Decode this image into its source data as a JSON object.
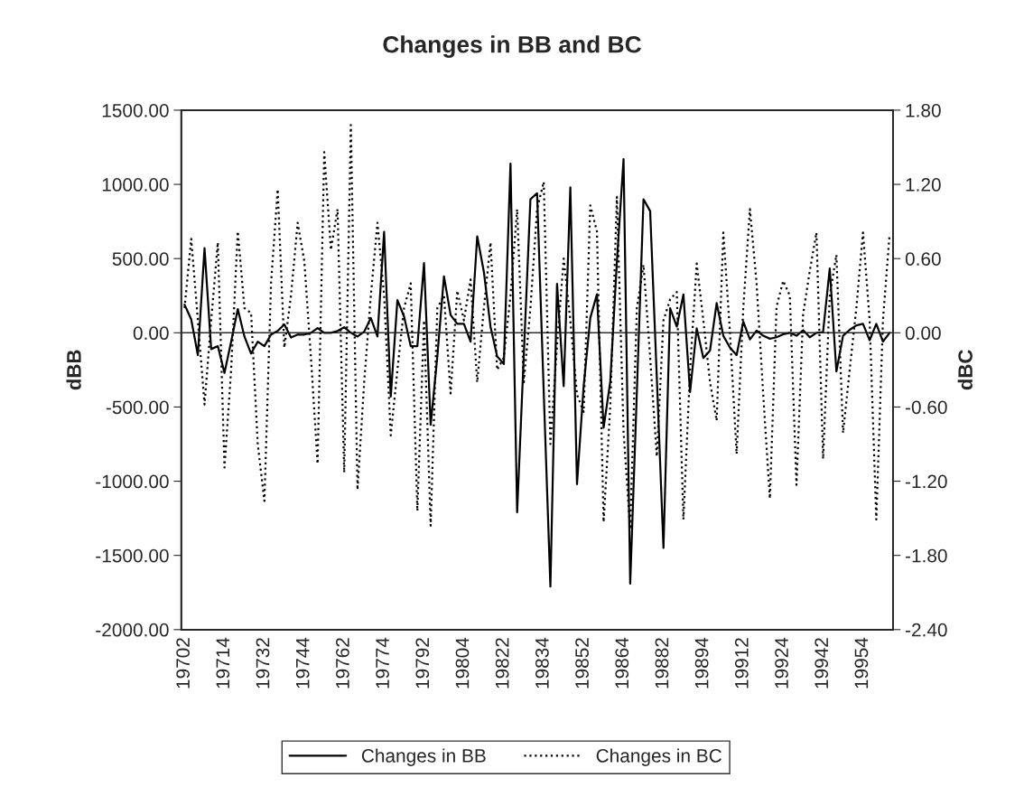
{
  "chart_data": {
    "type": "line",
    "title": "Changes in BB and BC",
    "ylabel": "dBB",
    "y2label": "dBC",
    "categories": [
      "19702",
      null,
      null,
      null,
      null,
      null,
      "19714",
      null,
      null,
      null,
      null,
      null,
      "19732",
      null,
      null,
      null,
      null,
      null,
      "19744",
      null,
      null,
      null,
      null,
      null,
      "19762",
      null,
      null,
      null,
      null,
      null,
      "19774",
      null,
      null,
      null,
      null,
      null,
      "19792",
      null,
      null,
      null,
      null,
      null,
      "19804",
      null,
      null,
      null,
      null,
      null,
      "19822",
      null,
      null,
      null,
      null,
      null,
      "19834",
      null,
      null,
      null,
      null,
      null,
      "19852",
      null,
      null,
      null,
      null,
      null,
      "19864",
      null,
      null,
      null,
      null,
      null,
      "19882",
      null,
      null,
      null,
      null,
      null,
      "19894",
      null,
      null,
      null,
      null,
      null,
      "19912",
      null,
      null,
      null,
      null,
      null,
      "19924",
      null,
      null,
      null,
      null,
      null,
      "19942",
      null,
      null,
      null,
      null,
      null,
      "19954",
      null,
      null,
      null,
      null
    ],
    "series": [
      {
        "name": "Changes in BB",
        "color": "#000000",
        "line_style": "solid",
        "values": [
          190,
          90,
          -150,
          570,
          -110,
          -90,
          -270,
          -60,
          160,
          -25,
          -140,
          -60,
          -90,
          -12,
          12,
          57,
          -32,
          -12,
          -12,
          0,
          32,
          0,
          0,
          12,
          37,
          0,
          -25,
          7,
          100,
          -25,
          680,
          -430,
          220,
          110,
          -90,
          -90,
          470,
          -620,
          -160,
          380,
          120,
          60,
          60,
          -60,
          650,
          410,
          40,
          -160,
          -210,
          1140,
          -1210,
          -150,
          900,
          940,
          -400,
          -1710,
          330,
          -360,
          980,
          -1020,
          -360,
          100,
          260,
          -640,
          -330,
          480,
          1170,
          -1690,
          -400,
          900,
          820,
          -300,
          -1450,
          166,
          42,
          258,
          -400,
          30,
          -170,
          -120,
          200,
          -20,
          -100,
          -150,
          75,
          -45,
          15,
          -20,
          -40,
          -30,
          -10,
          0,
          -20,
          17,
          -30,
          0,
          5,
          434,
          -260,
          -20,
          20,
          50,
          60,
          -50,
          60,
          -60,
          0
        ]
      },
      {
        "name": "Changes in BC",
        "color": "#000000",
        "line_style": "dotted",
        "axis": "y2",
        "values": [
          0.2,
          0.76,
          0.1,
          -0.58,
          0.1,
          0.73,
          -1.09,
          -0.3,
          0.82,
          0.2,
          0.16,
          -0.9,
          -1.36,
          0.4,
          1.16,
          -0.12,
          0.3,
          0.89,
          0.58,
          -0.2,
          -1.06,
          1.46,
          0.67,
          1.0,
          -1.13,
          1.68,
          -1.27,
          -0.4,
          0.3,
          0.89,
          0.3,
          -0.83,
          -0.3,
          0.2,
          0.4,
          -1.44,
          0.1,
          -1.56,
          0.2,
          0.3,
          -0.49,
          0.34,
          0.1,
          0.43,
          -0.4,
          0.2,
          0.73,
          -0.3,
          -0.2,
          0.3,
          1.0,
          -0.4,
          0.2,
          1.0,
          1.22,
          -0.9,
          -0.1,
          0.6,
          0.1,
          -0.5,
          -0.64,
          1.03,
          0.82,
          -1.53,
          -0.6,
          1.1,
          -0.8,
          -1.59,
          0.2,
          0.55,
          -0.2,
          -1.0,
          0.1,
          0.27,
          0.33,
          -1.51,
          -0.3,
          0.56,
          0.1,
          -0.4,
          -0.71,
          0.81,
          0.0,
          -0.98,
          0.2,
          1.0,
          0.4,
          -0.5,
          -1.34,
          0.21,
          0.42,
          0.3,
          -1.23,
          0.15,
          0.5,
          0.81,
          -1.02,
          0.3,
          0.63,
          -0.81,
          -0.3,
          0.2,
          0.81,
          0.1,
          -1.51,
          0.1,
          0.8
        ]
      }
    ],
    "ylim": [
      -2000,
      1500
    ],
    "yticks": [
      {
        "value": -2000,
        "label": "-2000.00"
      },
      {
        "value": -1500,
        "label": "-1500.00"
      },
      {
        "value": -1000,
        "label": "-1000.00"
      },
      {
        "value": -500,
        "label": "-500.00"
      },
      {
        "value": 0,
        "label": "0.00"
      },
      {
        "value": 500,
        "label": "500.00"
      },
      {
        "value": 1000,
        "label": "1000.00"
      },
      {
        "value": 1500,
        "label": "1500.00"
      }
    ],
    "y2lim": [
      -2.4,
      1.8
    ],
    "y2ticks": [
      {
        "value": -2.4,
        "label": "-2.40"
      },
      {
        "value": -1.8,
        "label": "-1.80"
      },
      {
        "value": -1.2,
        "label": "-1.20"
      },
      {
        "value": -0.6,
        "label": "-0.60"
      },
      {
        "value": 0,
        "label": "0.00"
      },
      {
        "value": 0.6,
        "label": "0.60"
      },
      {
        "value": 1.2,
        "label": "1.20"
      },
      {
        "value": 1.8,
        "label": "1.80"
      }
    ],
    "ref_lines": [
      {
        "axis": "y",
        "value": 0,
        "color": "#000000",
        "line_style": "solid"
      }
    ],
    "grid": false,
    "legend": "bottom",
    "marker": "none"
  }
}
